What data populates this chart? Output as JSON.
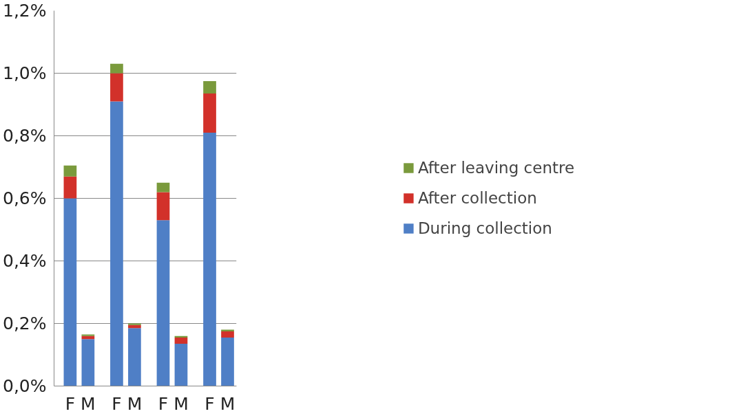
{
  "chart_data": {
    "type": "bar",
    "stacked": true,
    "categories": [
      "F",
      "M",
      "F",
      "M",
      "F",
      "M",
      "F",
      "M"
    ],
    "series": [
      {
        "name": "During collection",
        "color": "#4f7fc6",
        "values": [
          0.6,
          0.15,
          0.91,
          0.185,
          0.53,
          0.135,
          0.81,
          0.155
        ]
      },
      {
        "name": "After collection",
        "color": "#d2312a",
        "values": [
          0.07,
          0.01,
          0.09,
          0.01,
          0.09,
          0.02,
          0.125,
          0.02
        ]
      },
      {
        "name": "After leaving centre",
        "color": "#7a9a3c",
        "values": [
          0.035,
          0.005,
          0.03,
          0.005,
          0.03,
          0.005,
          0.04,
          0.005
        ]
      }
    ],
    "ylim": [
      0,
      1.2
    ],
    "yticks": [
      {
        "value": 0,
        "label": "0,0%"
      },
      {
        "value": 0.2,
        "label": "0,2%"
      },
      {
        "value": 0.4,
        "label": "0,4%"
      },
      {
        "value": 0.6,
        "label": "0,6%"
      },
      {
        "value": 0.8,
        "label": "0,8%"
      },
      {
        "value": 1.0,
        "label": "1,0%"
      },
      {
        "value": 1.2,
        "label": "1,2%"
      }
    ],
    "grid": "y",
    "legend": "right"
  }
}
